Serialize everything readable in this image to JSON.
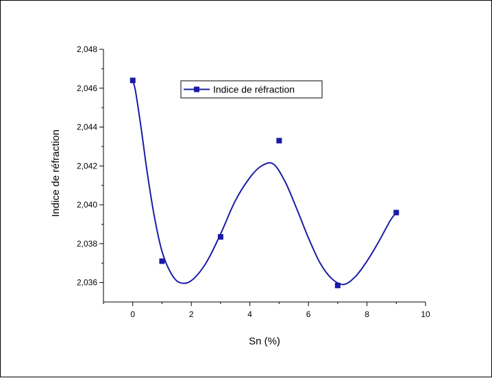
{
  "chart_data": {
    "type": "line",
    "xlabel": "Sn (%)",
    "ylabel": "Indice de réfraction",
    "xlim": [
      -1,
      10
    ],
    "ylim": [
      2.035,
      2.048
    ],
    "xticks": [
      0,
      2,
      4,
      6,
      8,
      10
    ],
    "xtick_labels": [
      "0",
      "2",
      "4",
      "6",
      "8",
      "10"
    ],
    "yticks": [
      2.036,
      2.038,
      2.04,
      2.042,
      2.044,
      2.046,
      2.048
    ],
    "ytick_labels": [
      "2,036",
      "2,038",
      "2,040",
      "2,042",
      "2,044",
      "2,046",
      "2,048"
    ],
    "legend_position": "top-center",
    "grid": false,
    "colors": {
      "series": "#1a1aa6",
      "axis": "#000000"
    },
    "series": [
      {
        "name": "Indice de réfraction",
        "marker": "square",
        "x": [
          0,
          1,
          3,
          5,
          7,
          9
        ],
        "y": [
          2.0464,
          2.0371,
          2.03835,
          2.0433,
          2.03585,
          2.0396
        ]
      }
    ],
    "fit_curve": {
      "style": "smooth-line",
      "x": [
        0,
        0.1,
        0.3,
        0.5,
        0.75,
        1.0,
        1.3,
        1.6,
        2.0,
        2.5,
        3.0,
        3.5,
        4.0,
        4.4,
        4.8,
        5.2,
        5.6,
        6.0,
        6.4,
        6.8,
        7.2,
        7.6,
        8.0,
        8.4,
        8.8,
        9.0
      ],
      "y": [
        2.0464,
        2.0458,
        2.0438,
        2.0416,
        2.0393,
        2.0376,
        2.0365,
        2.036,
        2.0361,
        2.037,
        2.0385,
        2.0402,
        2.0414,
        2.042,
        2.0421,
        2.0412,
        2.0398,
        2.0383,
        2.037,
        2.0362,
        2.0359,
        2.0363,
        2.0371,
        2.0381,
        2.0392,
        2.0396
      ]
    }
  }
}
